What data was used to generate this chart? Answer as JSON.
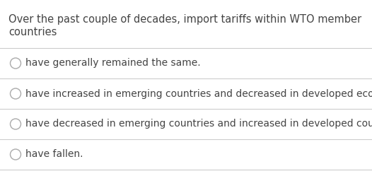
{
  "question_line1": "Over the past couple of decades, import tariffs within WTO member",
  "question_line2": "countries",
  "options": [
    "have generally remained the same.",
    "have increased in emerging countries and decreased in developed economies.",
    "have decreased in emerging countries and increased in developed countries.",
    "have fallen."
  ],
  "background_color": "#ffffff",
  "text_color": "#444444",
  "line_color": "#cccccc",
  "circle_color": "#aaaaaa",
  "question_fontsize": 10.5,
  "option_fontsize": 10.0,
  "fig_width": 5.26,
  "fig_height": 2.49,
  "dpi": 100
}
